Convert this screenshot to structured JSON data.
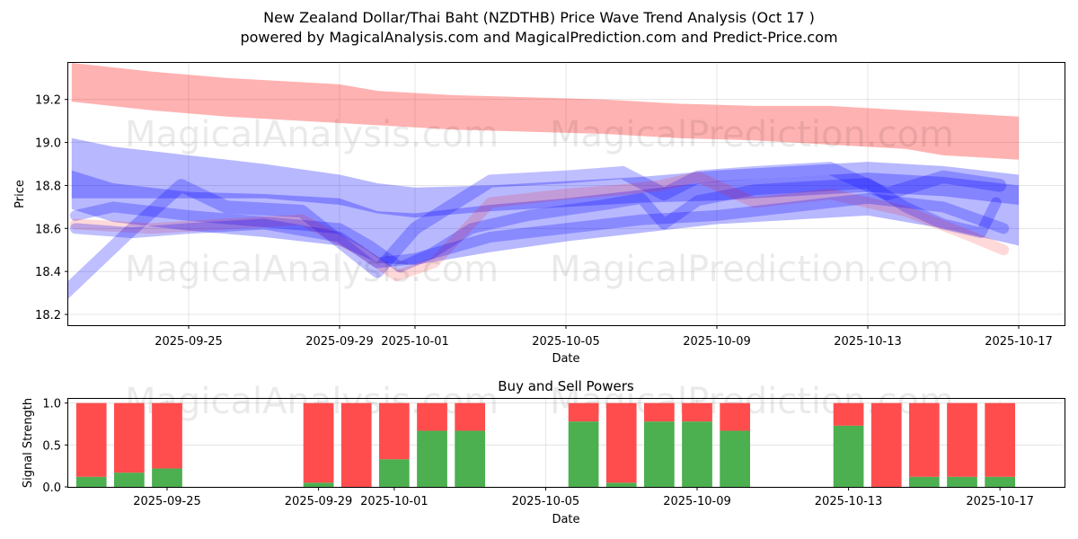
{
  "title_line1": "New Zealand Dollar/Thai Baht (NZDTHB) Price Wave Trend Analysis (Oct 17 )",
  "title_line2": "powered by MagicalAnalysis.com and MagicalPrediction.com and Predict-Price.com",
  "watermarks": {
    "left": "MagicalAnalysis.com",
    "right": "MagicalPrediction.com"
  },
  "colors": {
    "red_band": "#ff0000",
    "blue_band": "#0000ff",
    "buy": "#4caf50",
    "sell": "#ff4d4d"
  },
  "chart_data": [
    {
      "type": "area",
      "title": "",
      "xlabel": "Date",
      "ylabel": "Price",
      "ylim": [
        18.15,
        19.37
      ],
      "xlim": [
        "2025-09-21.6",
        "2025-10-17.7"
      ],
      "x_ticks": [
        "2025-09-25",
        "2025-09-29",
        "2025-10-01",
        "2025-10-05",
        "2025-10-09",
        "2025-10-13",
        "2025-10-17"
      ],
      "y_ticks": [
        18.2,
        18.4,
        18.6,
        18.8,
        19.0,
        19.2
      ],
      "grid": true,
      "series": [
        {
          "name": "upper-red-band",
          "color": "red",
          "x": [
            21.9,
            24.0,
            26.0,
            29.0,
            30.0,
            32.0,
            34.0,
            36.0,
            37.0,
            38.0,
            40.0,
            42.0,
            44.0,
            45.0,
            47.0
          ],
          "center": [
            19.28,
            19.24,
            19.21,
            19.18,
            19.16,
            19.14,
            19.13,
            19.12,
            19.11,
            19.1,
            19.09,
            19.08,
            19.06,
            19.04,
            19.02
          ],
          "half_width": [
            0.09,
            0.09,
            0.09,
            0.09,
            0.08,
            0.08,
            0.08,
            0.08,
            0.08,
            0.08,
            0.08,
            0.09,
            0.09,
            0.1,
            0.1
          ]
        },
        {
          "name": "wide-blue-band",
          "color": "blue",
          "x": [
            21.9,
            23.0,
            25.0,
            27.0,
            29.0,
            30.0,
            31.0,
            33.0,
            35.0,
            37.0,
            38.0,
            39.0,
            41.0,
            43.0,
            45.0,
            47.0
          ],
          "center": [
            18.78,
            18.72,
            18.68,
            18.66,
            18.63,
            18.56,
            18.55,
            18.6,
            18.64,
            18.68,
            18.7,
            18.72,
            18.74,
            18.76,
            18.72,
            18.66
          ],
          "half_width": [
            0.09,
            0.09,
            0.09,
            0.1,
            0.11,
            0.12,
            0.12,
            0.11,
            0.1,
            0.1,
            0.1,
            0.1,
            0.1,
            0.1,
            0.12,
            0.14
          ]
        },
        {
          "name": "upper-blue-band",
          "color": "blue",
          "x": [
            21.9,
            23.0,
            25.0,
            27.0,
            29.0,
            30.0,
            31.0,
            33.0,
            35.0,
            37.0,
            39.0,
            41.0,
            43.0,
            45.0,
            47.0
          ],
          "center": [
            18.88,
            18.86,
            18.84,
            18.82,
            18.78,
            18.74,
            18.72,
            18.74,
            18.76,
            18.78,
            18.8,
            18.82,
            18.84,
            18.82,
            18.78
          ],
          "half_width": [
            0.14,
            0.12,
            0.1,
            0.08,
            0.07,
            0.07,
            0.07,
            0.06,
            0.06,
            0.06,
            0.07,
            0.07,
            0.07,
            0.07,
            0.07
          ]
        },
        {
          "name": "main-blue-path",
          "color": "blue",
          "x": [
            22.0,
            23.0,
            25.0,
            27.0,
            29.0,
            29.8,
            30.6,
            31.4,
            32.5,
            34.0,
            36.0,
            37.0,
            37.6,
            38.5,
            40.0,
            42.0,
            43.0,
            44.0,
            45.0,
            46.0,
            46.4
          ],
          "y": [
            18.66,
            18.7,
            18.66,
            18.63,
            18.6,
            18.52,
            18.42,
            18.48,
            18.6,
            18.66,
            18.71,
            18.74,
            18.62,
            18.73,
            18.78,
            18.8,
            18.81,
            18.7,
            18.62,
            18.58,
            18.72
          ],
          "width": 0.05
        },
        {
          "name": "diagonal-blue-path",
          "color": "blue",
          "x": [
            21.6,
            23.4,
            24.8,
            26.0,
            28.0,
            30.0,
            31.0,
            33.0,
            35.0,
            36.5,
            37.6,
            38.5,
            40.0,
            42.0,
            43.5,
            45.0,
            46.5
          ],
          "y": [
            18.28,
            18.58,
            18.8,
            18.7,
            18.68,
            18.4,
            18.6,
            18.82,
            18.84,
            18.86,
            18.76,
            18.84,
            18.86,
            18.88,
            18.76,
            18.84,
            18.8
          ],
          "width": 0.06
        },
        {
          "name": "faint-red-path",
          "color": "red",
          "x": [
            22.0,
            24.0,
            26.0,
            28.0,
            29.5,
            30.5,
            31.5,
            33.0,
            35.0,
            36.5,
            37.5,
            38.5,
            40.0,
            42.0,
            44.0,
            45.5,
            46.6
          ],
          "y": [
            18.62,
            18.6,
            18.62,
            18.64,
            18.5,
            18.38,
            18.44,
            18.72,
            18.76,
            18.78,
            18.8,
            18.84,
            18.72,
            18.76,
            18.68,
            18.58,
            18.5
          ],
          "width": 0.05
        },
        {
          "name": "lower-blue-path",
          "color": "blue",
          "x": [
            22.0,
            23.5,
            25.0,
            27.0,
            29.0,
            30.0,
            31.0,
            33.0,
            35.0,
            37.0,
            39.0,
            41.0,
            43.0,
            45.0,
            46.6
          ],
          "y": [
            18.6,
            18.58,
            18.6,
            18.62,
            18.56,
            18.44,
            18.46,
            18.56,
            18.6,
            18.64,
            18.66,
            18.7,
            18.74,
            18.7,
            18.6
          ],
          "width": 0.05
        }
      ]
    },
    {
      "type": "bar",
      "stacked": true,
      "title": "Buy and Sell Powers",
      "xlabel": "Date",
      "ylabel": "Signal Strength",
      "ylim": [
        0,
        1.05
      ],
      "y_ticks": [
        0.0,
        0.5,
        1.0
      ],
      "x_ticks": [
        "2025-09-25",
        "2025-09-29",
        "2025-10-01",
        "2025-10-05",
        "2025-10-09",
        "2025-10-13",
        "2025-10-17"
      ],
      "categories": [
        "2025-09-23",
        "2025-09-24",
        "2025-09-25",
        "2025-09-29",
        "2025-09-30",
        "2025-10-01",
        "2025-10-02",
        "2025-10-03",
        "2025-10-06",
        "2025-10-07",
        "2025-10-08",
        "2025-10-09",
        "2025-10-10",
        "2025-10-13",
        "2025-10-14",
        "2025-10-15",
        "2025-10-16",
        "2025-10-17"
      ],
      "series": [
        {
          "name": "Buy",
          "values": [
            0.12,
            0.17,
            0.22,
            0.05,
            0.0,
            0.33,
            0.67,
            0.67,
            0.78,
            0.05,
            0.78,
            0.78,
            0.67,
            0.73,
            0.0,
            0.12,
            0.12,
            0.12
          ]
        },
        {
          "name": "Sell",
          "values": [
            0.88,
            0.83,
            0.78,
            0.95,
            1.0,
            0.67,
            0.33,
            0.33,
            0.22,
            0.95,
            0.22,
            0.22,
            0.33,
            0.27,
            1.0,
            0.88,
            0.88,
            0.88
          ]
        }
      ]
    }
  ]
}
